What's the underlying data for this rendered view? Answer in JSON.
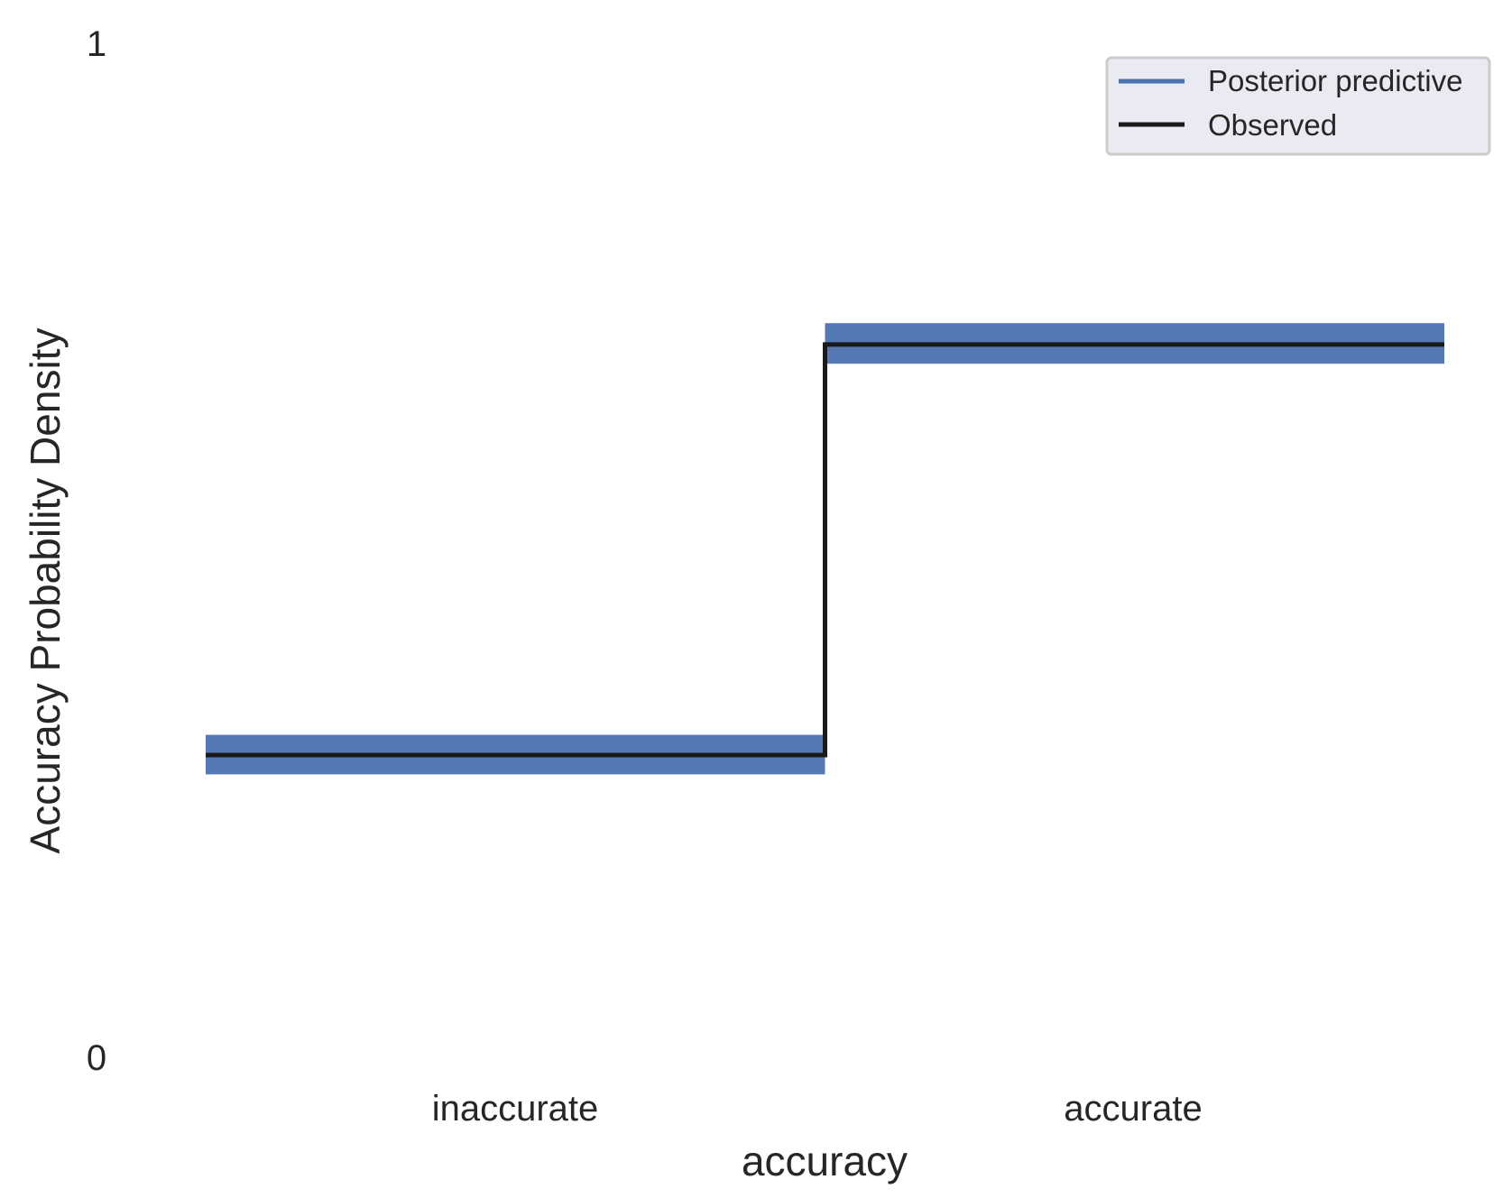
{
  "chart_data": {
    "type": "line",
    "categories": [
      "inaccurate",
      "accurate"
    ],
    "xlabel": "accuracy",
    "ylabel": "Accuracy Probability Density",
    "ylim": [
      0,
      1
    ],
    "yticks": [
      "0",
      "1"
    ],
    "grid": false,
    "legend": "top-right",
    "series": [
      {
        "name": "Posterior predictive",
        "color": "#4c72b0",
        "style": "band",
        "values": [
          0.298,
          0.703
        ],
        "low": [
          0.279,
          0.684
        ],
        "high": [
          0.318,
          0.724
        ]
      },
      {
        "name": "Observed",
        "color": "#1a1a1a",
        "style": "step",
        "values": [
          0.298,
          0.703
        ]
      }
    ]
  }
}
